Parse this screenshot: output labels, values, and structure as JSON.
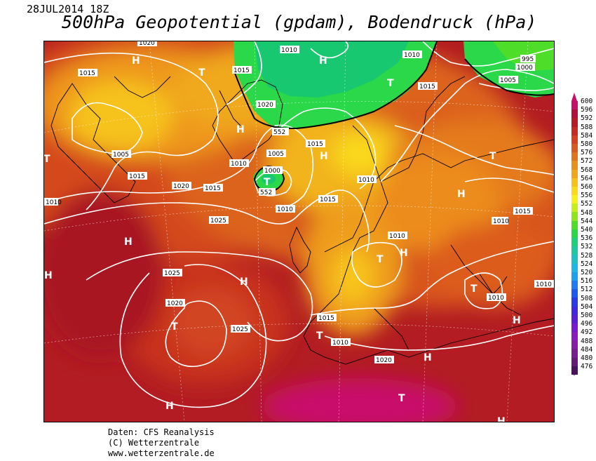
{
  "header": {
    "date": "28JUL2014 18Z",
    "title": "500hPa Geopotential (gpdam), Bodendruck (hPa)"
  },
  "credits": {
    "line1": "Daten: CFS Reanalysis",
    "line2": "(C) Wetterzentrale",
    "line3": "www.wetterzentrale.de"
  },
  "legend": {
    "labels": [
      "600",
      "596",
      "592",
      "588",
      "584",
      "580",
      "576",
      "572",
      "568",
      "564",
      "560",
      "556",
      "552",
      "548",
      "544",
      "540",
      "536",
      "532",
      "528",
      "524",
      "520",
      "516",
      "512",
      "508",
      "504",
      "500",
      "496",
      "492",
      "488",
      "484",
      "480",
      "476"
    ],
    "colors": [
      "#c8106a",
      "#b0103a",
      "#b81a24",
      "#c62a20",
      "#d44020",
      "#d85a1e",
      "#e0741c",
      "#e8901a",
      "#f0a81a",
      "#f6c21a",
      "#fad81a",
      "#f8f01a",
      "#c6ee1a",
      "#8ee61a",
      "#4ede2a",
      "#28d848",
      "#1ed078",
      "#1ec8a0",
      "#1ec0c6",
      "#1eb6e6",
      "#1ea0f0",
      "#1e7cf0",
      "#1e5af0",
      "#2a3ae8",
      "#4028e0",
      "#5a1ed8",
      "#7a1ad0",
      "#8c1ac0",
      "#8a1aa8",
      "#781a90",
      "#66187a",
      "#4a1060"
    ]
  },
  "pressure_labels": [
    "1020",
    "1015",
    "1010",
    "1015",
    "1020",
    "1005",
    "1015",
    "1020",
    "1015",
    "1005",
    "1000",
    "1010",
    "1015",
    "1010",
    "1015",
    "1005",
    "995",
    "1000",
    "1010",
    "1015",
    "1025",
    "1025",
    "1020",
    "1025",
    "1010",
    "1015",
    "1010",
    "1010",
    "1010",
    "1010",
    "1010",
    "552",
    "552",
    "1020",
    "1010",
    "1015"
  ],
  "centers": {
    "high": "H",
    "low": "T"
  }
}
